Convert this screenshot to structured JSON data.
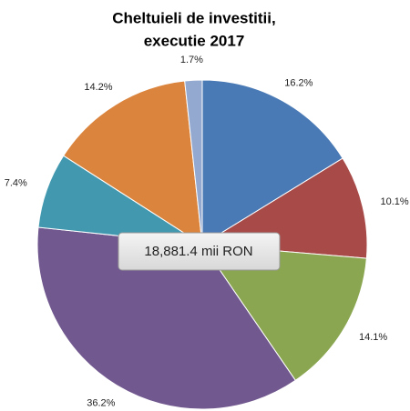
{
  "chart_data": {
    "type": "pie",
    "title": [
      "Cheltuieli de investitii,",
      "executie 2017"
    ],
    "annotation": "18,881.4 mii RON",
    "values": [
      16.2,
      10.1,
      14.1,
      36.2,
      7.4,
      14.2,
      1.7
    ],
    "value_labels": [
      "16.2%",
      "10.1%",
      "14.1%",
      "36.2%",
      "7.4%",
      "14.2%",
      "1.7%"
    ],
    "colors": [
      "#4a7ab5",
      "#a84a48",
      "#8aa650",
      "#71588f",
      "#4198af",
      "#db843d",
      "#93a9cf"
    ]
  }
}
